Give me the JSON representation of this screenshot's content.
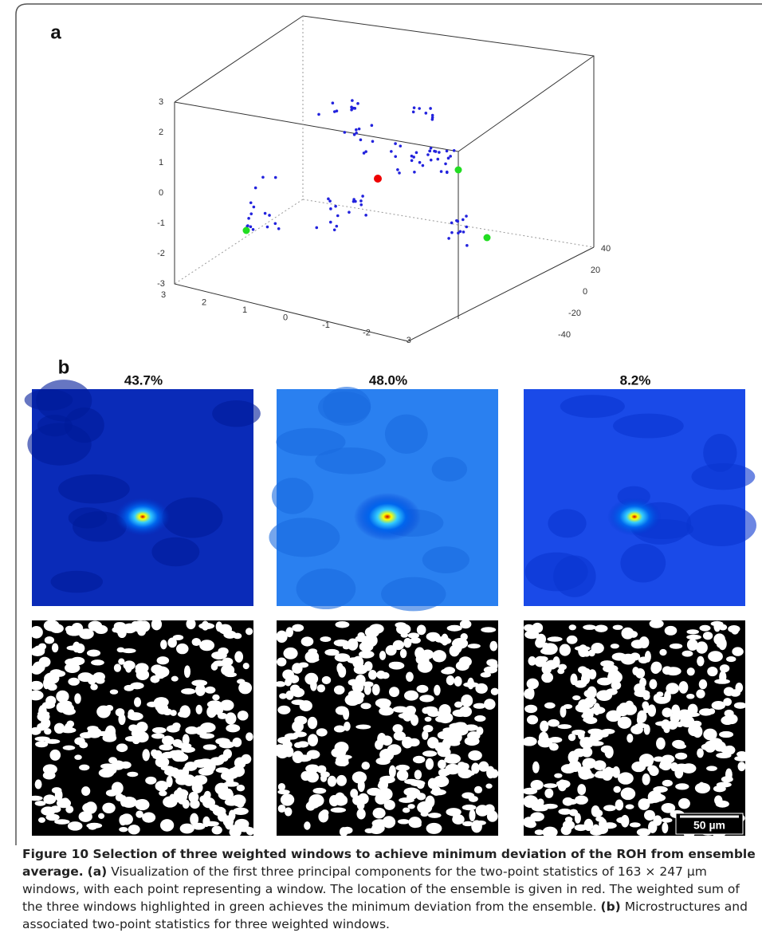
{
  "figure": {
    "panel_a": {
      "label": "a",
      "z_ticks": [
        "3",
        "2",
        "1",
        "0",
        "-1",
        "-2",
        "-3"
      ],
      "x_ticks": [
        "3",
        "2",
        "1",
        "0",
        "-1",
        "-2",
        "-3"
      ],
      "y_ticks": [
        "40",
        "20",
        "0",
        "-20",
        "-40"
      ]
    },
    "panel_b": {
      "label": "b",
      "weights": [
        "43.7%",
        "48.0%",
        "8.2%"
      ],
      "scale_bar": "50 µm"
    },
    "caption": {
      "title": "Figure 10 Selection of three weighted windows to achieve minimum deviation of the ROH from ensemble average.",
      "part_a_label": "(a)",
      "part_a": "Visualization of the first three principal components for the two-point statistics of 163 × 247 µm windows, with each point representing a window. The location of the ensemble is given in red. The weighted sum of the three windows highlighted in green achieves the minimum deviation from the ensemble.",
      "part_b_label": "(b)",
      "part_b": "Microstructures and associated two-point statistics for three weighted windows."
    }
  }
}
